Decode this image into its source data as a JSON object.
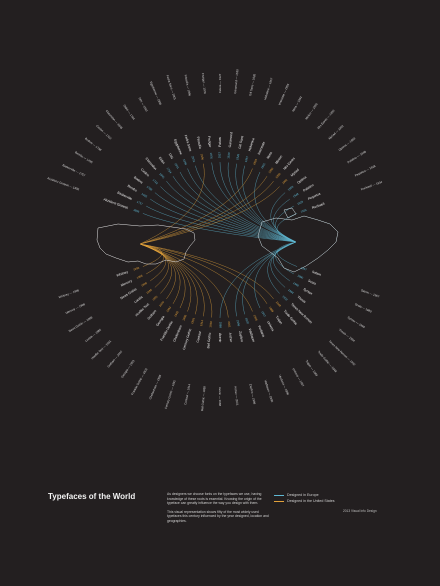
{
  "poster": {
    "title": "Typefaces of the World",
    "intro_paragraphs": [
      "As designers we choose fonts on the typefaces we use, having knowledge of these roots is essential. Knowing the origin of the typeface can greatly influence the way you design with them.",
      "This visual representation shows fifty of the most widely used typefaces this century influenced by the year designed, location and geographies."
    ],
    "legend": [
      {
        "label": "Designed in Europe",
        "color": "#5fb8d3"
      },
      {
        "label": "Designed in the United States",
        "color": "#e2a13b"
      }
    ],
    "credit": "2013 Visual Info Design",
    "colors": {
      "background": "#231f20",
      "europe": "#5fb8d3",
      "us": "#e2a13b",
      "map_outline": "#ffffff",
      "text": "#f2f2f2"
    }
  },
  "typefaces": {
    "top": [
      {
        "name": "Akzidenz Grotesk",
        "year": "1896",
        "origin": "eu"
      },
      {
        "name": "Baskerville",
        "year": "1757",
        "origin": "eu"
      },
      {
        "name": "Bembo",
        "year": "1495",
        "origin": "eu"
      },
      {
        "name": "Bodoni",
        "year": "1798",
        "origin": "eu"
      },
      {
        "name": "Caslon",
        "year": "1722",
        "origin": "eu"
      },
      {
        "name": "Clarendon",
        "year": "1845",
        "origin": "eu"
      },
      {
        "name": "Didot",
        "year": "1784",
        "origin": "eu"
      },
      {
        "name": "DIN",
        "year": "1931",
        "origin": "eu"
      },
      {
        "name": "Egyptienne",
        "year": "1956",
        "origin": "eu"
      },
      {
        "name": "Fedra Sans",
        "year": "2001",
        "origin": "eu"
      },
      {
        "name": "Filosofia",
        "year": "1996",
        "origin": "us"
      },
      {
        "name": "Frutiger",
        "year": "1976",
        "origin": "eu"
      },
      {
        "name": "Futura",
        "year": "1927",
        "origin": "eu"
      },
      {
        "name": "Garamond",
        "year": "1530",
        "origin": "eu"
      },
      {
        "name": "Gill Sans",
        "year": "1926",
        "origin": "eu"
      },
      {
        "name": "Helvetica",
        "year": "1957",
        "origin": "eu"
      },
      {
        "name": "Interstate",
        "year": "1993",
        "origin": "us"
      },
      {
        "name": "Meta",
        "year": "1991",
        "origin": "eu"
      },
      {
        "name": "Minion",
        "year": "1990",
        "origin": "us"
      },
      {
        "name": "Mrs Eaves",
        "year": "1996",
        "origin": "us"
      },
      {
        "name": "Myriad",
        "year": "1992",
        "origin": "us"
      },
      {
        "name": "Optima",
        "year": "1958",
        "origin": "eu"
      },
      {
        "name": "Palatino",
        "year": "1948",
        "origin": "eu"
      },
      {
        "name": "Perpetua",
        "year": "1928",
        "origin": "eu"
      },
      {
        "name": "Rockwell",
        "year": "1934",
        "origin": "eu"
      }
    ],
    "bottom": [
      {
        "name": "Sabon",
        "year": "1967",
        "origin": "eu"
      },
      {
        "name": "Scala",
        "year": "1990",
        "origin": "eu"
      },
      {
        "name": "Syntax",
        "year": "1968",
        "origin": "eu"
      },
      {
        "name": "Thesis",
        "year": "1994",
        "origin": "eu"
      },
      {
        "name": "Times New Roman",
        "year": "1932",
        "origin": "eu"
      },
      {
        "name": "Trade Gothic",
        "year": "1948",
        "origin": "us"
      },
      {
        "name": "Trajan",
        "year": "1989",
        "origin": "us"
      },
      {
        "name": "Univers",
        "year": "1957",
        "origin": "eu"
      },
      {
        "name": "Verdana",
        "year": "1996",
        "origin": "us"
      },
      {
        "name": "Walbaum",
        "year": "1800",
        "origin": "eu"
      },
      {
        "name": "Zapfino",
        "year": "1998",
        "origin": "eu"
      },
      {
        "name": "Archer",
        "year": "2001",
        "origin": "us"
      },
      {
        "name": "Avenir",
        "year": "1988",
        "origin": "eu"
      },
      {
        "name": "Bell Gothic",
        "year": "1938",
        "origin": "us"
      },
      {
        "name": "Centaur",
        "year": "1914",
        "origin": "us"
      },
      {
        "name": "Century Gothic",
        "year": "1991",
        "origin": "us"
      },
      {
        "name": "Cheltenham",
        "year": "1896",
        "origin": "us"
      },
      {
        "name": "Franklin Gothic",
        "year": "1902",
        "origin": "us"
      },
      {
        "name": "Georgia",
        "year": "1993",
        "origin": "us"
      },
      {
        "name": "Gotham",
        "year": "2000",
        "origin": "us"
      },
      {
        "name": "Hoefler Text",
        "year": "1991",
        "origin": "us"
      },
      {
        "name": "Lucida",
        "year": "1985",
        "origin": "us"
      },
      {
        "name": "News Gothic",
        "year": "1908",
        "origin": "us"
      },
      {
        "name": "Mercury",
        "year": "1996",
        "origin": "us"
      },
      {
        "name": "Whitney",
        "year": "1996",
        "origin": "us"
      }
    ]
  }
}
